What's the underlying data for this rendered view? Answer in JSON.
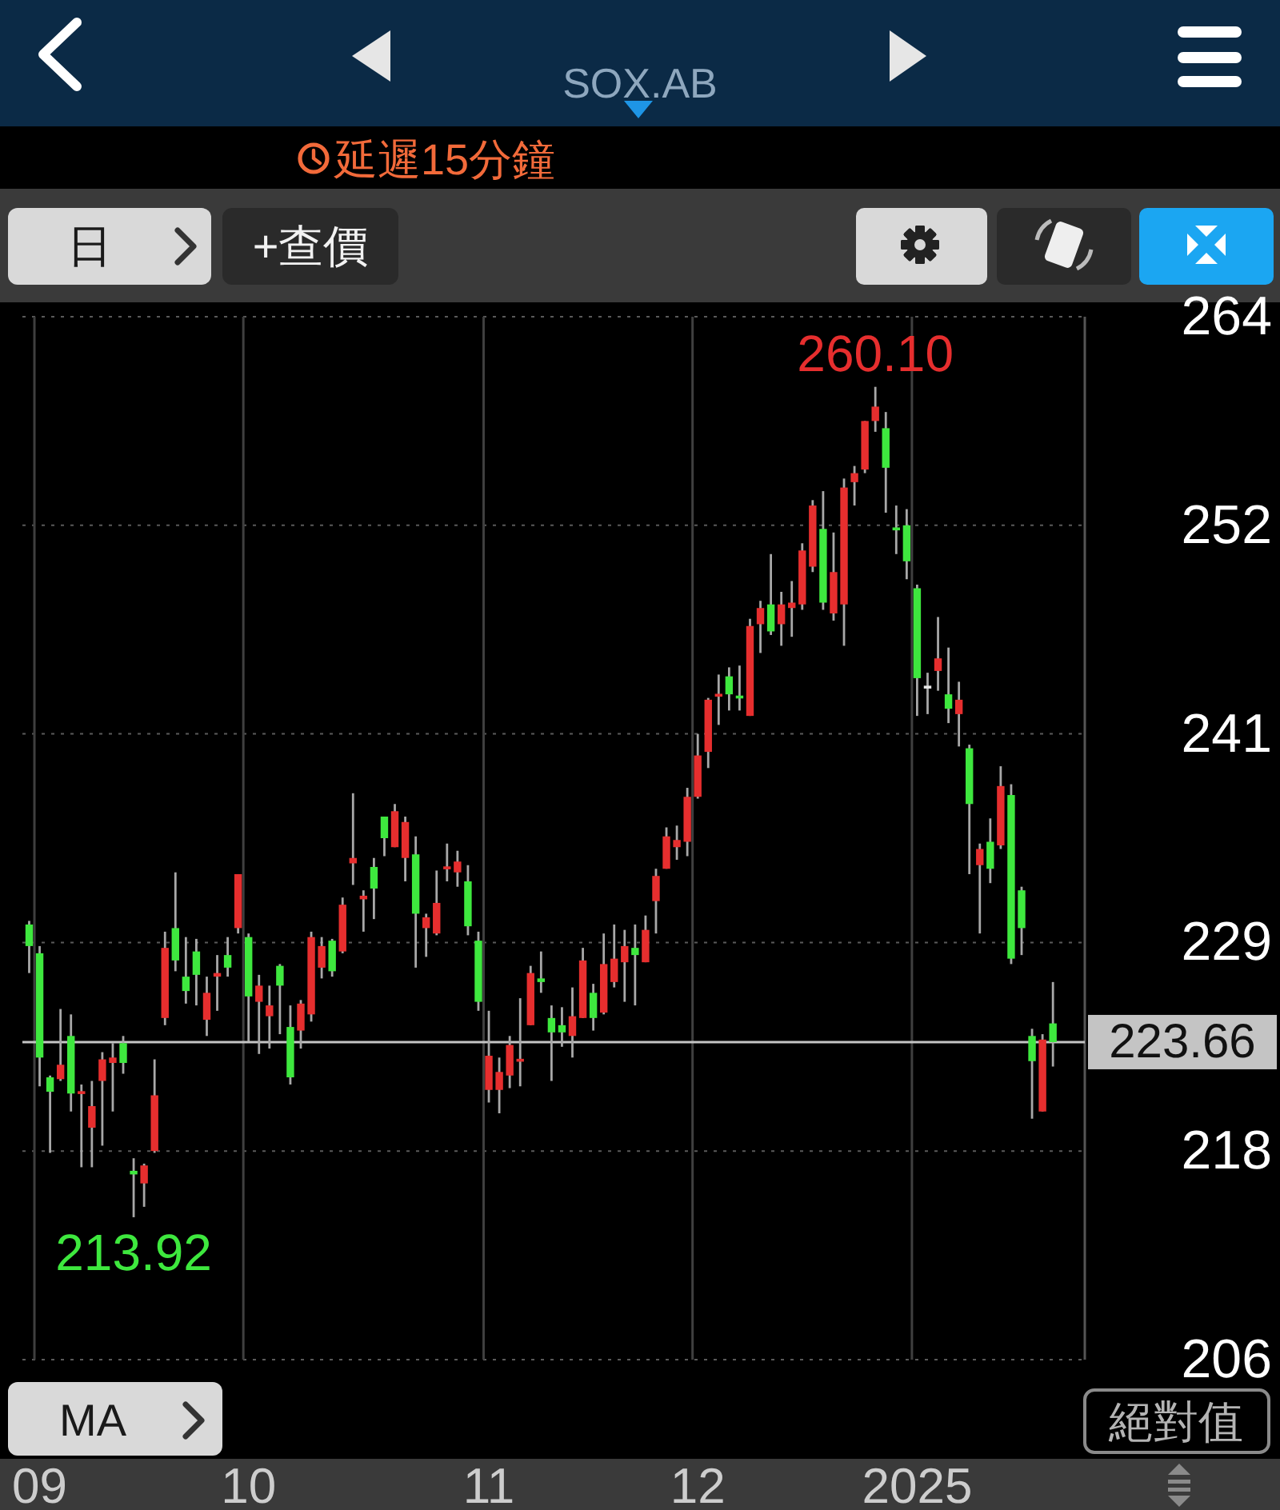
{
  "chart_data": {
    "type": "candlestick",
    "subtitle": "SOX.AB",
    "categories": [
      null,
      "09",
      null,
      null,
      null,
      null,
      null,
      null,
      null,
      null,
      null,
      null,
      null,
      null,
      null,
      null,
      null,
      null,
      null,
      null,
      null,
      "10",
      null,
      null,
      null,
      null,
      null,
      null,
      null,
      null,
      null,
      null,
      null,
      null,
      null,
      null,
      null,
      null,
      null,
      null,
      null,
      null,
      null,
      null,
      "11",
      null,
      null,
      null,
      null,
      null,
      null,
      null,
      null,
      null,
      null,
      null,
      null,
      null,
      null,
      null,
      null,
      null,
      null,
      null,
      "12",
      null,
      null,
      null,
      null,
      null,
      null,
      null,
      null,
      null,
      null,
      null,
      null,
      null,
      null,
      null,
      null,
      null,
      null,
      null,
      null,
      "2025",
      null,
      null,
      null,
      null,
      null,
      null,
      null,
      null,
      null,
      null,
      null,
      null,
      null
    ],
    "ohlc": [
      [
        230.2,
        230.4,
        227.5,
        229.0
      ],
      [
        228.6,
        229.0,
        221.2,
        222.8
      ],
      [
        221.7,
        221.8,
        217.5,
        220.9
      ],
      [
        221.6,
        225.5,
        221.5,
        222.4
      ],
      [
        224.0,
        225.2,
        219.8,
        220.8
      ],
      [
        220.8,
        221.3,
        216.7,
        220.9
      ],
      [
        218.9,
        221.5,
        216.7,
        220.1
      ],
      [
        221.5,
        223.1,
        217.9,
        222.7
      ],
      [
        222.5,
        223.6,
        219.8,
        222.8
      ],
      [
        223.6,
        224.0,
        221.9,
        222.5
      ],
      [
        216.5,
        217.2,
        213.92,
        216.3
      ],
      [
        215.8,
        216.9,
        214.5,
        216.8
      ],
      [
        217.6,
        222.7,
        217.5,
        220.7
      ],
      [
        225.0,
        229.8,
        224.6,
        228.9
      ],
      [
        230.0,
        233.1,
        227.6,
        228.2
      ],
      [
        227.3,
        229.5,
        225.8,
        226.5
      ],
      [
        228.7,
        229.4,
        225.7,
        227.4
      ],
      [
        224.9,
        227.3,
        224.0,
        226.4
      ],
      [
        227.3,
        228.5,
        225.4,
        227.5
      ],
      [
        228.5,
        229.5,
        227.3,
        227.8
      ],
      [
        230.0,
        233.0,
        229.7,
        233.0
      ],
      [
        229.5,
        229.7,
        223.7,
        226.2
      ],
      [
        225.9,
        227.4,
        223.0,
        226.8
      ],
      [
        225.1,
        226.8,
        223.3,
        225.7
      ],
      [
        227.9,
        228.0,
        224.1,
        226.8
      ],
      [
        224.5,
        225.7,
        221.3,
        221.7
      ],
      [
        224.3,
        226.0,
        223.3,
        225.8
      ],
      [
        225.2,
        229.8,
        224.8,
        229.5
      ],
      [
        227.8,
        229.5,
        227.2,
        229.0
      ],
      [
        229.3,
        229.4,
        227.3,
        227.6
      ],
      [
        228.7,
        231.7,
        228.6,
        231.3
      ],
      [
        233.6,
        237.5,
        232.4,
        233.9
      ],
      [
        231.6,
        232.1,
        229.8,
        231.8
      ],
      [
        233.4,
        233.9,
        230.5,
        232.2
      ],
      [
        236.2,
        236.2,
        234.0,
        235.0
      ],
      [
        234.5,
        236.9,
        234.5,
        236.5
      ],
      [
        233.9,
        236.2,
        232.6,
        235.9
      ],
      [
        234.1,
        235.1,
        227.8,
        230.8
      ],
      [
        230.0,
        230.8,
        228.4,
        230.6
      ],
      [
        229.7,
        233.2,
        229.6,
        231.4
      ],
      [
        233.3,
        234.7,
        232.6,
        233.4
      ],
      [
        233.1,
        234.3,
        232.3,
        233.7
      ],
      [
        232.6,
        233.5,
        229.6,
        230.1
      ],
      [
        229.3,
        229.8,
        225.4,
        225.9
      ],
      [
        221.0,
        225.4,
        220.3,
        222.9
      ],
      [
        221.0,
        222.8,
        219.7,
        222.0
      ],
      [
        221.8,
        224.0,
        221.1,
        223.5
      ],
      [
        222.6,
        226.1,
        221.2,
        222.7
      ],
      [
        224.6,
        227.9,
        224.6,
        227.5
      ],
      [
        227.2,
        228.7,
        226.4,
        227.0
      ],
      [
        225.0,
        225.7,
        221.5,
        224.2
      ],
      [
        224.6,
        225.6,
        223.4,
        224.2
      ],
      [
        224.0,
        226.7,
        222.8,
        225.1
      ],
      [
        225.0,
        228.9,
        225.0,
        228.2
      ],
      [
        226.4,
        226.9,
        224.3,
        225.0
      ],
      [
        225.3,
        229.7,
        225.2,
        228.0
      ],
      [
        227.0,
        230.2,
        226.7,
        228.3
      ],
      [
        228.1,
        229.9,
        225.9,
        229.0
      ],
      [
        228.9,
        230.2,
        225.7,
        228.5
      ],
      [
        228.1,
        230.7,
        228.1,
        229.9
      ],
      [
        231.5,
        233.3,
        229.7,
        232.9
      ],
      [
        233.3,
        235.6,
        233.3,
        235.1
      ],
      [
        234.5,
        235.7,
        233.8,
        234.9
      ],
      [
        234.8,
        237.8,
        234.0,
        237.3
      ],
      [
        237.3,
        240.8,
        237.2,
        239.6
      ],
      [
        239.8,
        242.8,
        238.9,
        242.7
      ],
      [
        242.9,
        244.1,
        241.3,
        243.0
      ],
      [
        244.0,
        244.5,
        242.1,
        243.0
      ],
      [
        242.9,
        244.6,
        242.1,
        242.8
      ],
      [
        241.8,
        247.2,
        241.8,
        246.8
      ],
      [
        246.9,
        248.2,
        245.3,
        247.8
      ],
      [
        248.0,
        250.8,
        246.3,
        246.5
      ],
      [
        246.9,
        248.7,
        245.7,
        248.0
      ],
      [
        247.8,
        249.3,
        246.2,
        248.1
      ],
      [
        248.0,
        251.4,
        247.7,
        251.0
      ],
      [
        250.1,
        253.8,
        249.8,
        253.5
      ],
      [
        252.2,
        254.3,
        247.7,
        248.1
      ],
      [
        247.5,
        252.0,
        247.1,
        249.8
      ],
      [
        248.0,
        255.0,
        245.7,
        254.5
      ],
      [
        254.8,
        255.7,
        253.5,
        255.3
      ],
      [
        255.5,
        258.2,
        255.3,
        258.2
      ],
      [
        258.2,
        260.1,
        257.6,
        259.0
      ],
      [
        257.8,
        258.7,
        253.1,
        255.6
      ],
      [
        252.2,
        253.5,
        250.8,
        252.2
      ],
      [
        252.4,
        253.3,
        249.4,
        250.4
      ],
      [
        248.9,
        249.1,
        241.8,
        243.9
      ],
      [
        243.4,
        244.2,
        241.9,
        243.4
      ],
      [
        244.3,
        247.3,
        243.2,
        245.0
      ],
      [
        243.0,
        245.6,
        241.4,
        242.2
      ],
      [
        241.9,
        243.7,
        240.1,
        242.7
      ],
      [
        240.0,
        240.2,
        233.0,
        236.9
      ],
      [
        233.5,
        234.7,
        229.7,
        234.4
      ],
      [
        234.8,
        236.1,
        232.5,
        233.3
      ],
      [
        234.6,
        239.0,
        234.4,
        237.9
      ],
      [
        237.4,
        238.0,
        228.0,
        228.3
      ],
      [
        232.1,
        232.3,
        228.5,
        230.0
      ],
      [
        224.0,
        224.4,
        219.4,
        222.6
      ],
      [
        219.8,
        224.1,
        219.8,
        223.8
      ],
      [
        224.7,
        227.0,
        222.3,
        223.66
      ]
    ],
    "colors": [
      "#3ee83e",
      "#3ee83e",
      "#3ee83e",
      "#e62e2e",
      "#3ee83e",
      "#e62e2e",
      "#e62e2e",
      "#e62e2e",
      "#e62e2e",
      "#3ee83e",
      "#3ee83e",
      "#e62e2e",
      "#e62e2e",
      "#e62e2e",
      "#3ee83e",
      "#3ee83e",
      "#3ee83e",
      "#e62e2e",
      "#e62e2e",
      "#3ee83e",
      "#e62e2e",
      "#3ee83e",
      "#e62e2e",
      "#e62e2e",
      "#3ee83e",
      "#3ee83e",
      "#e62e2e",
      "#e62e2e",
      "#e62e2e",
      "#3ee83e",
      "#e62e2e",
      "#e62e2e",
      "#e62e2e",
      "#3ee83e",
      "#3ee83e",
      "#e62e2e",
      "#e62e2e",
      "#3ee83e",
      "#e62e2e",
      "#e62e2e",
      "#e62e2e",
      "#e62e2e",
      "#3ee83e",
      "#3ee83e",
      "#e62e2e",
      "#e62e2e",
      "#e62e2e",
      "#e62e2e",
      "#e62e2e",
      "#3ee83e",
      "#3ee83e",
      "#3ee83e",
      "#e62e2e",
      "#e62e2e",
      "#3ee83e",
      "#e62e2e",
      "#e62e2e",
      "#e62e2e",
      "#3ee83e",
      "#e62e2e",
      "#e62e2e",
      "#e62e2e",
      "#e62e2e",
      "#e62e2e",
      "#e62e2e",
      "#e62e2e",
      "#e62e2e",
      "#3ee83e",
      "#3ee83e",
      "#e62e2e",
      "#e62e2e",
      "#3ee83e",
      "#e62e2e",
      "#e62e2e",
      "#e62e2e",
      "#e62e2e",
      "#3ee83e",
      "#e62e2e",
      "#e62e2e",
      "#e62e2e",
      "#e62e2e",
      "#e62e2e",
      "#3ee83e",
      "#3ee83e",
      "#3ee83e",
      "#3ee83e",
      "#e6e6e6",
      "#e62e2e",
      "#3ee83e",
      "#e62e2e",
      "#3ee83e",
      "#e62e2e",
      "#3ee83e",
      "#e62e2e",
      "#3ee83e",
      "#3ee83e",
      "#3ee83e",
      "#e62e2e",
      "#3ee83e"
    ],
    "ylim": [
      206,
      264
    ],
    "yticks": [
      206,
      {
        "value": 217.6,
        "label": "218"
      },
      {
        "value": 229.2,
        "label": "229"
      },
      {
        "value": 240.8,
        "label": "241"
      },
      {
        "value": 252.4,
        "label": "252"
      },
      264
    ],
    "grid": true,
    "ref_lines": [
      {
        "axis": "y",
        "value": 223.66,
        "label": "223.66",
        "color": "#c4c4c4"
      }
    ],
    "annotations": [
      "延遲15分鐘",
      "日",
      "+查價",
      "MA",
      "絕對值",
      {
        "text": "260.10",
        "y": 260.1
      },
      {
        "text": "213.92",
        "y": 213.92
      }
    ]
  }
}
